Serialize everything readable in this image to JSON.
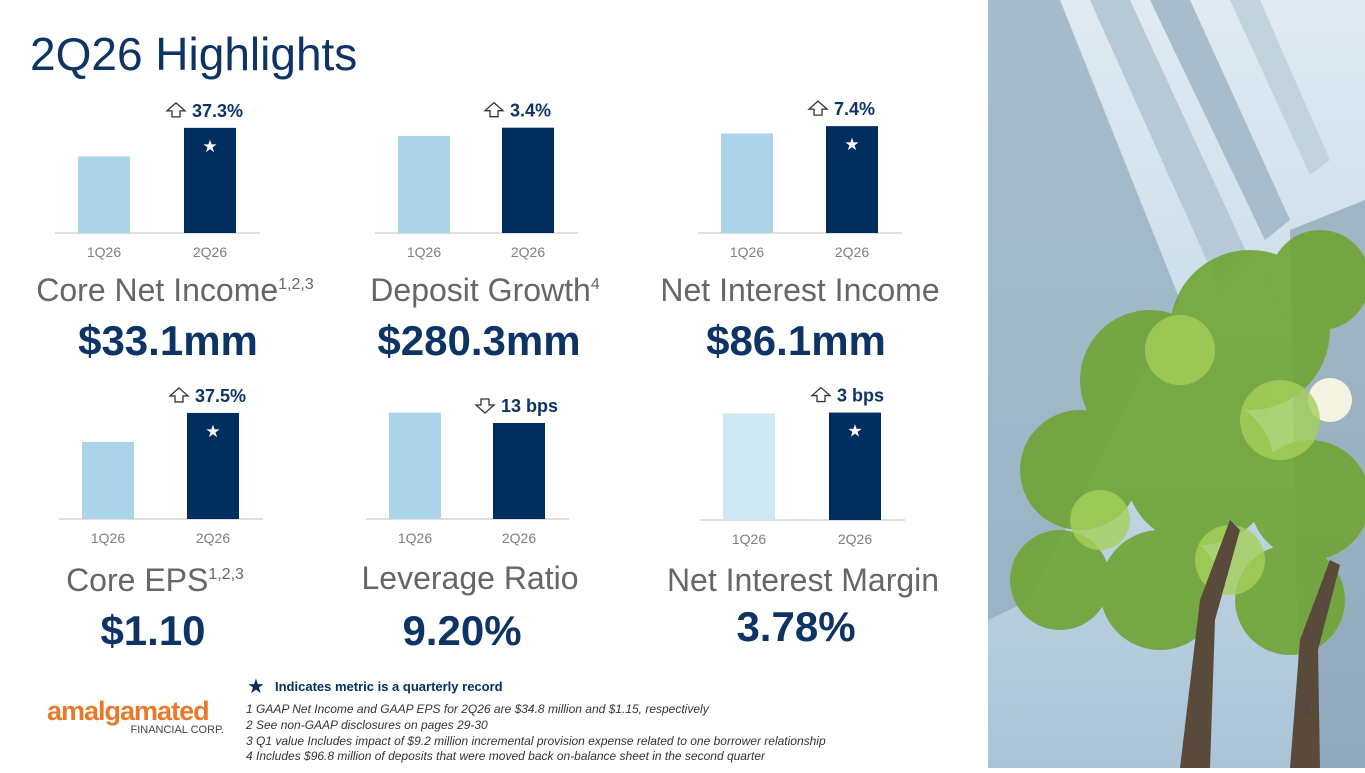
{
  "title": "2Q26 Highlights",
  "chart_data": [
    {
      "type": "bar",
      "categories": [
        "1Q26",
        "2Q26"
      ],
      "values": [
        24.1,
        33.1
      ],
      "colors": [
        "#abd4eb",
        "#002f5f"
      ],
      "ylim": [
        0,
        34
      ],
      "change": "37.3%",
      "change_direction": "up",
      "record": true,
      "metric": "Core Net Income",
      "footnote_refs": "1,2,3",
      "value_text": "$33.1mm"
    },
    {
      "type": "bar",
      "categories": [
        "1Q26",
        "2Q26"
      ],
      "values": [
        100,
        103.4
      ],
      "colors": [
        "#abd4eb",
        "#002f5f"
      ],
      "ylim": [
        60,
        104.5
      ],
      "change": "3.4%",
      "change_direction": "up",
      "record": false,
      "metric": "Deposit Growth",
      "footnote_refs": "4",
      "value_text": "$280.3mm"
    },
    {
      "type": "bar",
      "categories": [
        "1Q26",
        "2Q26"
      ],
      "values": [
        80.2,
        86.1
      ],
      "colors": [
        "#abd4eb",
        "#002f5f"
      ],
      "ylim": [
        0,
        87
      ],
      "change": "7.4%",
      "change_direction": "up",
      "record": true,
      "metric": "Net Interest Income",
      "footnote_refs": "",
      "value_text": "$86.1mm"
    },
    {
      "type": "bar",
      "categories": [
        "1Q26",
        "2Q26"
      ],
      "values": [
        0.8,
        1.1
      ],
      "colors": [
        "#abd4eb",
        "#002f5f"
      ],
      "ylim": [
        0,
        1.12
      ],
      "change": "37.5%",
      "change_direction": "up",
      "record": true,
      "metric": "Core EPS",
      "footnote_refs": "1,2,3",
      "value_text": "$1.10"
    },
    {
      "type": "bar",
      "categories": [
        "1Q26",
        "2Q26"
      ],
      "values": [
        9.33,
        9.2
      ],
      "colors": [
        "#abd4eb",
        "#002f5f"
      ],
      "ylim": [
        8,
        9.35
      ],
      "change": "13 bps",
      "change_direction": "down",
      "record": false,
      "metric": "Leverage Ratio",
      "footnote_refs": "",
      "value_text": "9.20%"
    },
    {
      "type": "bar",
      "categories": [
        "1Q26",
        "2Q26"
      ],
      "values": [
        3.75,
        3.78
      ],
      "colors": [
        "#cfe6f3",
        "#002f5f"
      ],
      "ylim": [
        0,
        3.8
      ],
      "change": "3 bps",
      "change_direction": "up",
      "record": true,
      "metric": "Net Interest Margin",
      "footnote_refs": "",
      "value_text": "3.78%"
    }
  ],
  "legend": {
    "record": "Indicates metric is a quarterly record"
  },
  "footnotes": [
    "1 GAAP Net Income and GAAP EPS for 2Q26 are $34.8 million and $1.15, respectively",
    "2 See non-GAAP disclosures on pages 29-30",
    "3 Q1 value Includes impact of $9.2 million incremental provision expense related to one borrower relationship",
    "4 Includes $96.8 million of deposits that were moved back on-balance sheet in the second quarter"
  ],
  "logo": {
    "name": "amalgamated",
    "sub": "FINANCIAL CORP."
  },
  "page_number": "3"
}
